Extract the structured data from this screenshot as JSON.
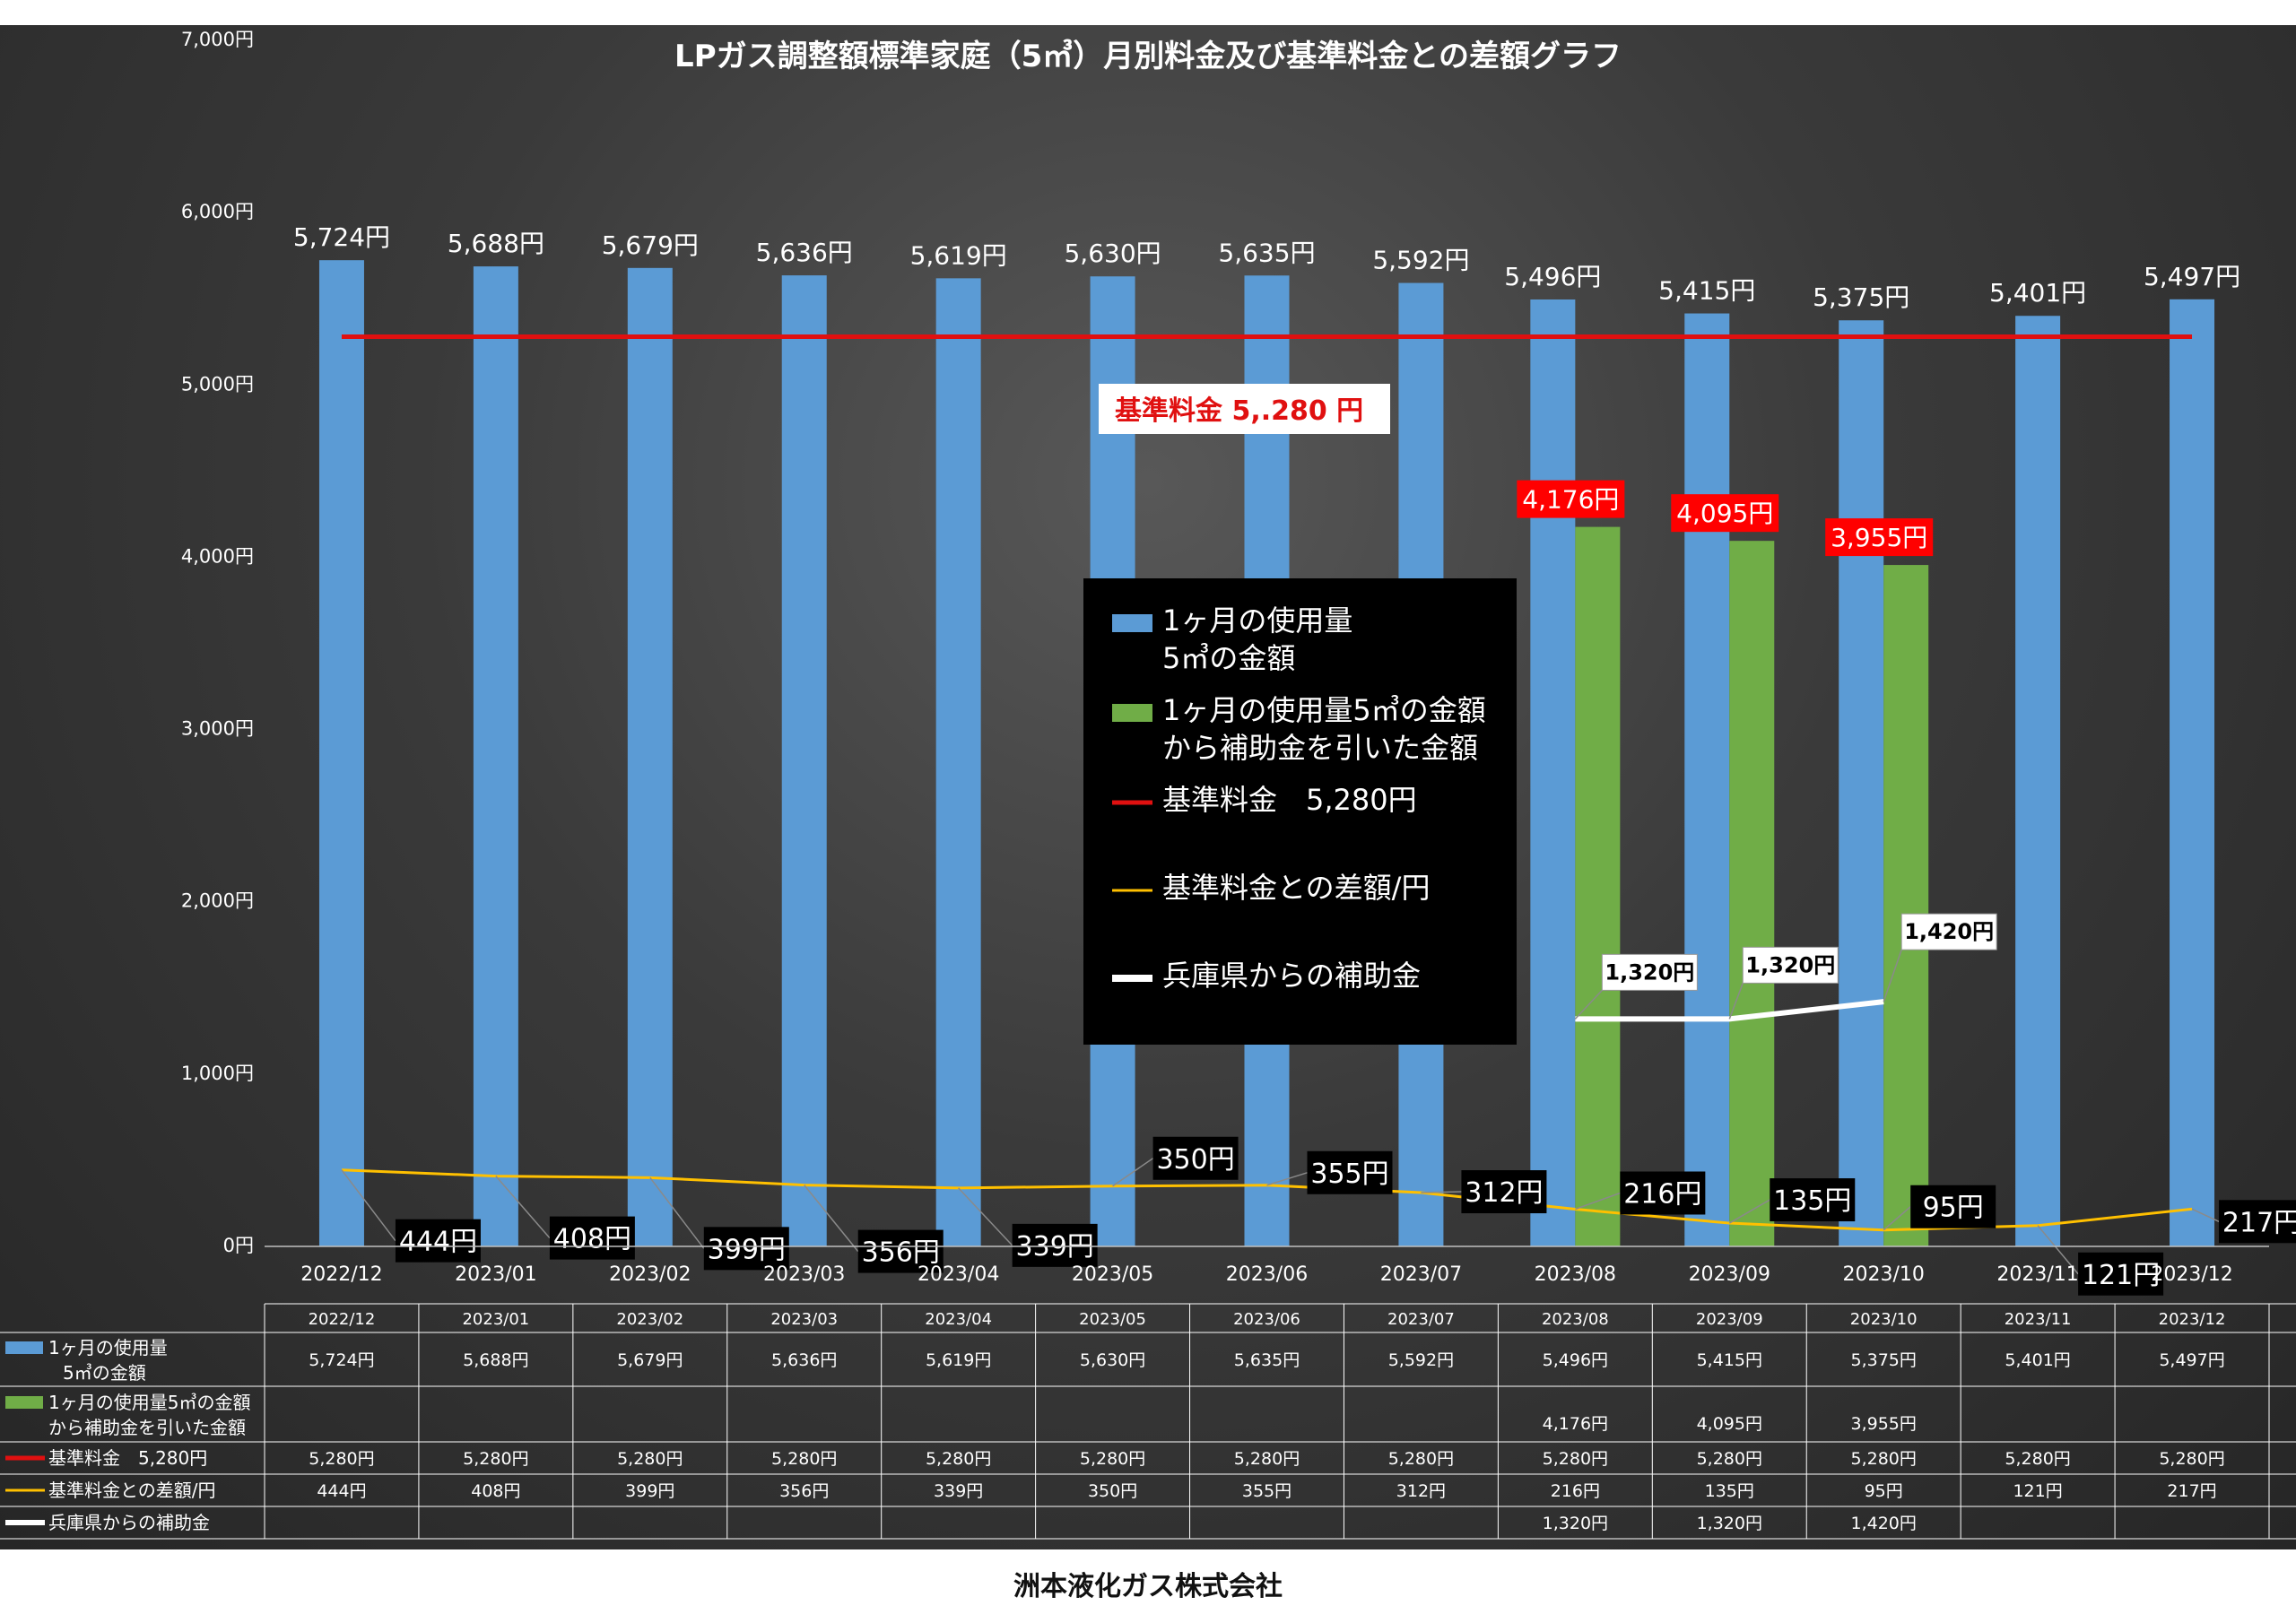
{
  "chart_data": {
    "type": "bar",
    "title": "LPガス調整額標準家庭（5㎥）月別料金及び基準料金との差額グラフ",
    "categories": [
      "2022/12",
      "2023/01",
      "2023/02",
      "2023/03",
      "2023/04",
      "2023/05",
      "2023/06",
      "2023/07",
      "2023/08",
      "2023/09",
      "2023/10",
      "2023/11",
      "2023/12"
    ],
    "ylim": [
      0,
      7000
    ],
    "yticks": [
      0,
      1000,
      2000,
      3000,
      4000,
      5000,
      6000,
      7000
    ],
    "ytick_labels": [
      "0円",
      "1,000円",
      "2,000円",
      "3,000円",
      "4,000円",
      "5,000円",
      "6,000円",
      "7,000円"
    ],
    "grid": false,
    "legend_position": "center-right (inside plot)",
    "series": [
      {
        "name": "1ヶ月の使用量5㎥の金額",
        "legend_lines": [
          "1ヶ月の使用量",
          "5㎥の金額"
        ],
        "kind": "bar",
        "color": "#5b9bd5",
        "values": [
          5724,
          5688,
          5679,
          5636,
          5619,
          5630,
          5635,
          5592,
          5496,
          5415,
          5375,
          5401,
          5497
        ],
        "labels": [
          "5,724円",
          "5,688円",
          "5,679円",
          "5,636円",
          "5,619円",
          "5,630円",
          "5,635円",
          "5,592円",
          "5,496円",
          "5,415円",
          "5,375円",
          "5,401円",
          "5,497円"
        ]
      },
      {
        "name": "1ヶ月の使用量5㎥の金額から補助金を引いた金額",
        "legend_lines": [
          "1ヶ月の使用量5㎥の金額",
          "から補助金を引いた金額"
        ],
        "kind": "bar",
        "color": "#70ad47",
        "values": [
          null,
          null,
          null,
          null,
          null,
          null,
          null,
          null,
          4176,
          4095,
          3955,
          null,
          null
        ],
        "labels": [
          "",
          "",
          "",
          "",
          "",
          "",
          "",
          "",
          "4,176円",
          "4,095円",
          "3,955円",
          "",
          ""
        ]
      },
      {
        "name": "基準料金 5,280円",
        "legend_lines": [
          "基準料金　5,280円"
        ],
        "kind": "line",
        "color": "#e01010",
        "values": [
          5280,
          5280,
          5280,
          5280,
          5280,
          5280,
          5280,
          5280,
          5280,
          5280,
          5280,
          5280,
          5280
        ],
        "labels": [
          "5,280円",
          "5,280円",
          "5,280円",
          "5,280円",
          "5,280円",
          "5,280円",
          "5,280円",
          "5,280円",
          "5,280円",
          "5,280円",
          "5,280円",
          "5,280円",
          "5,280円"
        ]
      },
      {
        "name": "基準料金との差額/円",
        "legend_lines": [
          "基準料金との差額/円"
        ],
        "kind": "line",
        "color": "#ffc000",
        "values": [
          444,
          408,
          399,
          356,
          339,
          350,
          355,
          312,
          216,
          135,
          95,
          121,
          217
        ],
        "labels": [
          "444円",
          "408円",
          "399円",
          "356円",
          "339円",
          "350円",
          "355円",
          "312円",
          "216円",
          "135円",
          "95円",
          "121円",
          "217円"
        ]
      },
      {
        "name": "兵庫県からの補助金",
        "legend_lines": [
          "兵庫県からの補助金"
        ],
        "kind": "line",
        "color": "#ffffff",
        "values": [
          null,
          null,
          null,
          null,
          null,
          null,
          null,
          null,
          1320,
          1320,
          1420,
          null,
          null
        ],
        "labels": [
          "",
          "",
          "",
          "",
          "",
          "",
          "",
          "",
          "1,320円",
          "1,320円",
          "1,420円",
          "",
          ""
        ]
      }
    ],
    "annotations": [
      {
        "text": "基準料金  5,.280  円",
        "style": "red text on white box"
      }
    ],
    "table": {
      "row_labels": [
        [
          "1ヶ月の使用量",
          "5㎥の金額"
        ],
        [
          "1ヶ月の使用量5㎥の金額",
          "から補助金を引いた金額"
        ],
        [
          "基準料金　5,280円"
        ],
        [
          "基準料金との差額/円"
        ],
        [
          "兵庫県からの補助金"
        ]
      ]
    }
  },
  "footer": "洲本液化ガス株式会社"
}
